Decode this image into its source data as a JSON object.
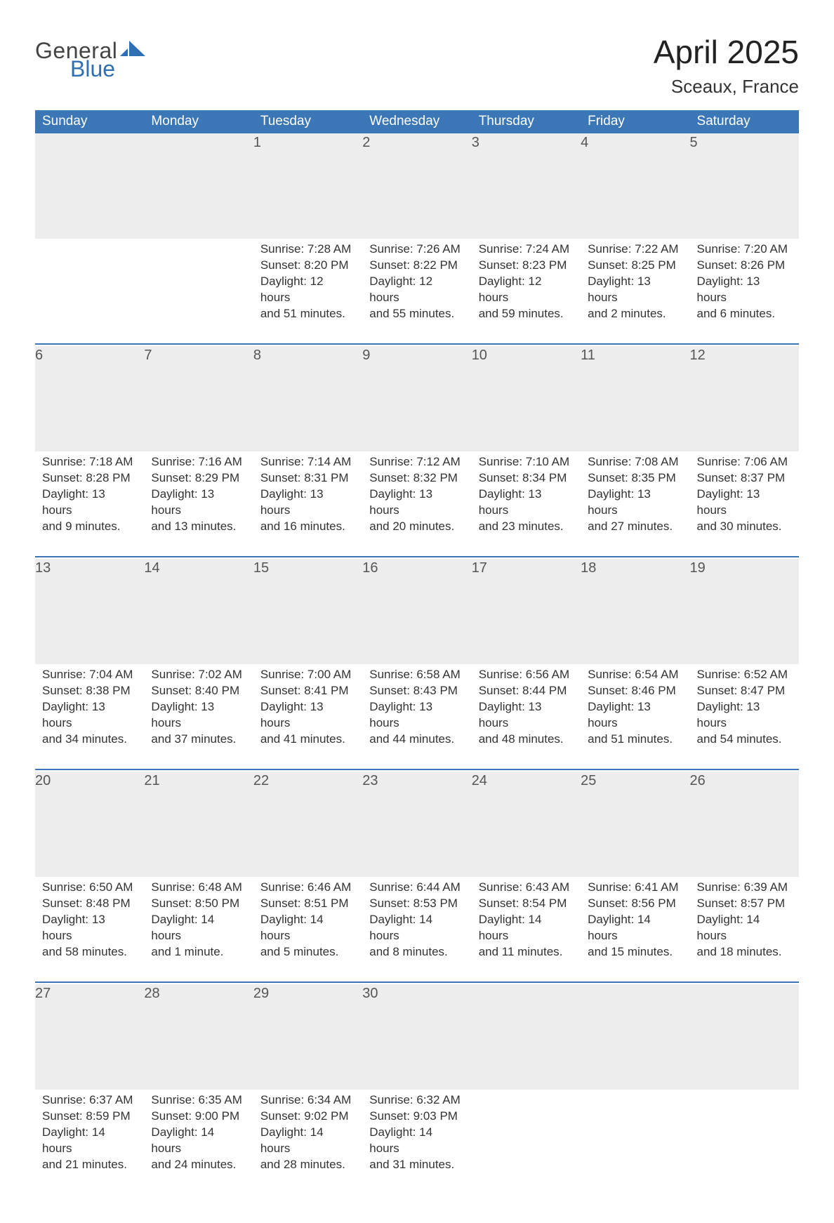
{
  "brand": {
    "line1": "General",
    "line2": "Blue"
  },
  "title": "April 2025",
  "subtitle": "Sceaux, France",
  "colors": {
    "header_bg": "#3b77b7",
    "header_fg": "#ffffff",
    "daynum_bg": "#ededed",
    "text": "#333333",
    "rule": "#3b77b7",
    "brand_gray": "#444444",
    "brand_blue": "#2f6fb3"
  },
  "typography": {
    "title_fontsize": 46,
    "subtitle_fontsize": 26,
    "header_fontsize": 19,
    "daynum_fontsize": 20,
    "body_fontsize": 17
  },
  "weekdays": [
    "Sunday",
    "Monday",
    "Tuesday",
    "Wednesday",
    "Thursday",
    "Friday",
    "Saturday"
  ],
  "weeks": [
    [
      null,
      null,
      {
        "n": "1",
        "sunrise": "Sunrise: 7:28 AM",
        "sunset": "Sunset: 8:20 PM",
        "day1": "Daylight: 12 hours",
        "day2": "and 51 minutes."
      },
      {
        "n": "2",
        "sunrise": "Sunrise: 7:26 AM",
        "sunset": "Sunset: 8:22 PM",
        "day1": "Daylight: 12 hours",
        "day2": "and 55 minutes."
      },
      {
        "n": "3",
        "sunrise": "Sunrise: 7:24 AM",
        "sunset": "Sunset: 8:23 PM",
        "day1": "Daylight: 12 hours",
        "day2": "and 59 minutes."
      },
      {
        "n": "4",
        "sunrise": "Sunrise: 7:22 AM",
        "sunset": "Sunset: 8:25 PM",
        "day1": "Daylight: 13 hours",
        "day2": "and 2 minutes."
      },
      {
        "n": "5",
        "sunrise": "Sunrise: 7:20 AM",
        "sunset": "Sunset: 8:26 PM",
        "day1": "Daylight: 13 hours",
        "day2": "and 6 minutes."
      }
    ],
    [
      {
        "n": "6",
        "sunrise": "Sunrise: 7:18 AM",
        "sunset": "Sunset: 8:28 PM",
        "day1": "Daylight: 13 hours",
        "day2": "and 9 minutes."
      },
      {
        "n": "7",
        "sunrise": "Sunrise: 7:16 AM",
        "sunset": "Sunset: 8:29 PM",
        "day1": "Daylight: 13 hours",
        "day2": "and 13 minutes."
      },
      {
        "n": "8",
        "sunrise": "Sunrise: 7:14 AM",
        "sunset": "Sunset: 8:31 PM",
        "day1": "Daylight: 13 hours",
        "day2": "and 16 minutes."
      },
      {
        "n": "9",
        "sunrise": "Sunrise: 7:12 AM",
        "sunset": "Sunset: 8:32 PM",
        "day1": "Daylight: 13 hours",
        "day2": "and 20 minutes."
      },
      {
        "n": "10",
        "sunrise": "Sunrise: 7:10 AM",
        "sunset": "Sunset: 8:34 PM",
        "day1": "Daylight: 13 hours",
        "day2": "and 23 minutes."
      },
      {
        "n": "11",
        "sunrise": "Sunrise: 7:08 AM",
        "sunset": "Sunset: 8:35 PM",
        "day1": "Daylight: 13 hours",
        "day2": "and 27 minutes."
      },
      {
        "n": "12",
        "sunrise": "Sunrise: 7:06 AM",
        "sunset": "Sunset: 8:37 PM",
        "day1": "Daylight: 13 hours",
        "day2": "and 30 minutes."
      }
    ],
    [
      {
        "n": "13",
        "sunrise": "Sunrise: 7:04 AM",
        "sunset": "Sunset: 8:38 PM",
        "day1": "Daylight: 13 hours",
        "day2": "and 34 minutes."
      },
      {
        "n": "14",
        "sunrise": "Sunrise: 7:02 AM",
        "sunset": "Sunset: 8:40 PM",
        "day1": "Daylight: 13 hours",
        "day2": "and 37 minutes."
      },
      {
        "n": "15",
        "sunrise": "Sunrise: 7:00 AM",
        "sunset": "Sunset: 8:41 PM",
        "day1": "Daylight: 13 hours",
        "day2": "and 41 minutes."
      },
      {
        "n": "16",
        "sunrise": "Sunrise: 6:58 AM",
        "sunset": "Sunset: 8:43 PM",
        "day1": "Daylight: 13 hours",
        "day2": "and 44 minutes."
      },
      {
        "n": "17",
        "sunrise": "Sunrise: 6:56 AM",
        "sunset": "Sunset: 8:44 PM",
        "day1": "Daylight: 13 hours",
        "day2": "and 48 minutes."
      },
      {
        "n": "18",
        "sunrise": "Sunrise: 6:54 AM",
        "sunset": "Sunset: 8:46 PM",
        "day1": "Daylight: 13 hours",
        "day2": "and 51 minutes."
      },
      {
        "n": "19",
        "sunrise": "Sunrise: 6:52 AM",
        "sunset": "Sunset: 8:47 PM",
        "day1": "Daylight: 13 hours",
        "day2": "and 54 minutes."
      }
    ],
    [
      {
        "n": "20",
        "sunrise": "Sunrise: 6:50 AM",
        "sunset": "Sunset: 8:48 PM",
        "day1": "Daylight: 13 hours",
        "day2": "and 58 minutes."
      },
      {
        "n": "21",
        "sunrise": "Sunrise: 6:48 AM",
        "sunset": "Sunset: 8:50 PM",
        "day1": "Daylight: 14 hours",
        "day2": "and 1 minute."
      },
      {
        "n": "22",
        "sunrise": "Sunrise: 6:46 AM",
        "sunset": "Sunset: 8:51 PM",
        "day1": "Daylight: 14 hours",
        "day2": "and 5 minutes."
      },
      {
        "n": "23",
        "sunrise": "Sunrise: 6:44 AM",
        "sunset": "Sunset: 8:53 PM",
        "day1": "Daylight: 14 hours",
        "day2": "and 8 minutes."
      },
      {
        "n": "24",
        "sunrise": "Sunrise: 6:43 AM",
        "sunset": "Sunset: 8:54 PM",
        "day1": "Daylight: 14 hours",
        "day2": "and 11 minutes."
      },
      {
        "n": "25",
        "sunrise": "Sunrise: 6:41 AM",
        "sunset": "Sunset: 8:56 PM",
        "day1": "Daylight: 14 hours",
        "day2": "and 15 minutes."
      },
      {
        "n": "26",
        "sunrise": "Sunrise: 6:39 AM",
        "sunset": "Sunset: 8:57 PM",
        "day1": "Daylight: 14 hours",
        "day2": "and 18 minutes."
      }
    ],
    [
      {
        "n": "27",
        "sunrise": "Sunrise: 6:37 AM",
        "sunset": "Sunset: 8:59 PM",
        "day1": "Daylight: 14 hours",
        "day2": "and 21 minutes."
      },
      {
        "n": "28",
        "sunrise": "Sunrise: 6:35 AM",
        "sunset": "Sunset: 9:00 PM",
        "day1": "Daylight: 14 hours",
        "day2": "and 24 minutes."
      },
      {
        "n": "29",
        "sunrise": "Sunrise: 6:34 AM",
        "sunset": "Sunset: 9:02 PM",
        "day1": "Daylight: 14 hours",
        "day2": "and 28 minutes."
      },
      {
        "n": "30",
        "sunrise": "Sunrise: 6:32 AM",
        "sunset": "Sunset: 9:03 PM",
        "day1": "Daylight: 14 hours",
        "day2": "and 31 minutes."
      },
      null,
      null,
      null
    ]
  ]
}
